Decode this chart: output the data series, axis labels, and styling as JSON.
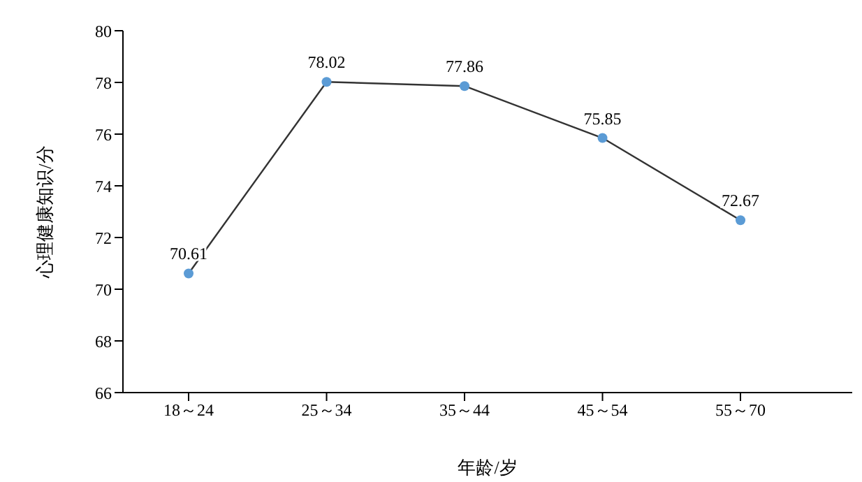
{
  "chart_data": {
    "type": "line",
    "xlabel": "年龄/岁",
    "ylabel": "心理健康知识/分",
    "categories": [
      "18～24",
      "25～34",
      "35～44",
      "45～54",
      "55～70"
    ],
    "series": [
      {
        "color": "#333333",
        "colors": [
          "#5b9bd5",
          "#5b9bd5",
          "#5b9bd5",
          "#5b9bd5",
          "#5b9bd5"
        ],
        "values": [
          70.61,
          78.02,
          77.86,
          75.85,
          72.67
        ]
      }
    ],
    "ylim": [
      66,
      80
    ],
    "yticks": [
      66,
      68,
      70,
      72,
      74,
      76,
      78,
      80
    ],
    "marker": "circle",
    "line_style": "solid",
    "data_labels": true
  }
}
